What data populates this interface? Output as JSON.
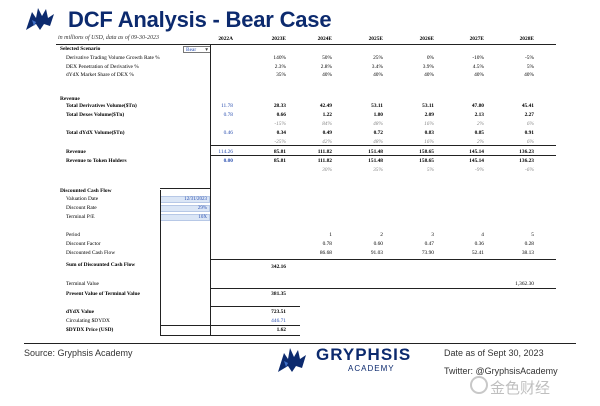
{
  "header": {
    "title": "DCF Analysis - Bear Case",
    "subtitle": "in millions of USD, data as of 09-30-2023"
  },
  "columns": [
    "2022A",
    "2023E",
    "2024E",
    "2025E",
    "2026E",
    "2027E",
    "2028E"
  ],
  "scenario": {
    "label": "Selected Scenario",
    "value": "Bear",
    "rows": [
      {
        "label": "Derivative Trading Volume Growth Rate %",
        "values": [
          "",
          "140%",
          "50%",
          "25%",
          "0%",
          "-10%",
          "-5%"
        ]
      },
      {
        "label": "DEX Penetration of Derivative %",
        "values": [
          "",
          "2.3%",
          "2.8%",
          "3.4%",
          "3.9%",
          "4.5%",
          "5%"
        ]
      },
      {
        "label": "dYdX Market Share of DEX %",
        "values": [
          "",
          "35%",
          "40%",
          "40%",
          "40%",
          "40%",
          "40%"
        ]
      }
    ]
  },
  "revenue": {
    "heading": "Revenue",
    "rows": [
      {
        "label": "Total Derivatives Volume($Tn)",
        "bold": true,
        "values": [
          "11.78",
          "28.33",
          "42.49",
          "53.11",
          "53.11",
          "47.80",
          "45.41"
        ]
      },
      {
        "label": "Total Dexes Volume($Tn)",
        "bold": true,
        "values": [
          "0.78",
          "0.66",
          "1.22",
          "1.80",
          "2.09",
          "2.13",
          "2.27"
        ]
      },
      {
        "label": "",
        "growth": true,
        "values": [
          "",
          "-15%",
          "84%",
          "48%",
          "16%",
          "2%",
          "6%"
        ]
      },
      {
        "label": "Total dYdX Volume($Tn)",
        "bold": true,
        "values": [
          "0.46",
          "0.34",
          "0.49",
          "0.72",
          "0.83",
          "0.85",
          "0.91"
        ]
      },
      {
        "label": "",
        "growth": true,
        "values": [
          "",
          "-25%",
          "42%",
          "48%",
          "16%",
          "2%",
          "6%"
        ]
      },
      {
        "label": "Revenue",
        "bold": true,
        "values": [
          "114.26",
          "85.81",
          "111.82",
          "151.48",
          "158.65",
          "145.14",
          "136.23"
        ]
      },
      {
        "label": "Revenue to Token Holders",
        "bold": true,
        "values": [
          "0.00",
          "85.81",
          "111.82",
          "151.48",
          "158.65",
          "145.14",
          "136.23"
        ]
      },
      {
        "label": "",
        "growth": true,
        "values": [
          "",
          "",
          "30%",
          "35%",
          "5%",
          "-9%",
          "-6%"
        ]
      }
    ]
  },
  "dcf": {
    "heading": "Discounted Cash Flow",
    "inputs": [
      {
        "label": "Valuation Date",
        "value": "12/31/2023"
      },
      {
        "label": "Discount Rate",
        "value": "29%"
      },
      {
        "label": "Terminal P/E",
        "value": "10X"
      }
    ],
    "period_label": "Period",
    "periods": [
      "1",
      "2",
      "3",
      "4",
      "5"
    ],
    "discount_factor_label": "Discount Factor",
    "discount_factors": [
      "0.78",
      "0.60",
      "0.47",
      "0.36",
      "0.28"
    ],
    "discounted_cf_label": "Discounted Cash Flow",
    "discounted_cfs": [
      "86.68",
      "91.03",
      "73.90",
      "52.41",
      "38.13"
    ],
    "sum_label": "Sum of Discounted Cash Flow",
    "sum_value": "342.16",
    "terminal_label": "Terminal Value",
    "terminal_value": "1,362.30",
    "pv_terminal_label": "Present Value of Terminal Value",
    "pv_terminal_value": "381.35",
    "dydx_value_label": "dYdX Value",
    "dydx_value": "723.51",
    "circulating_label": "Circulating $DYDX",
    "circulating_value": "446.71",
    "price_label": "$DYDX Price (USD)",
    "price_value": "1.62"
  },
  "footer": {
    "source": "Source: Gryphsis Academy",
    "brand": "GRYPHSIS",
    "brand_sub": "ACADEMY",
    "date": "Date as of Sept 30, 2023",
    "twitter": "Twitter: @GryphsisAcademy",
    "watermark": "金色财经"
  },
  "colors": {
    "brand": "#0c2a6e",
    "input_blue": "#2a4fb0",
    "input_fill": "#dbe6f6"
  }
}
